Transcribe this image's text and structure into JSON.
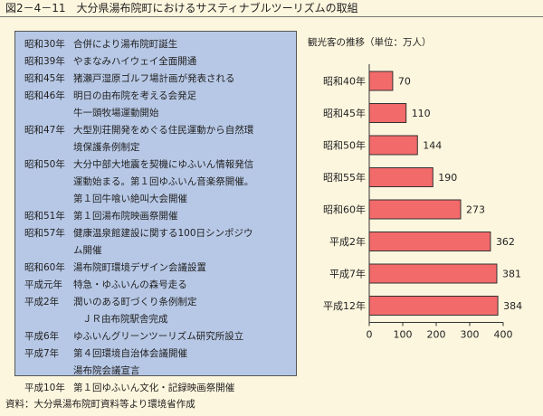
{
  "figure_title": "図2－4－11　大分県湯布院町におけるサスティナブルツーリズムの取組",
  "timeline": [
    {
      "era": "昭和30年",
      "lines": [
        "合併により湯布院町誕生"
      ]
    },
    {
      "era": "昭和39年",
      "lines": [
        "やまなみハイウェイ全面開通"
      ]
    },
    {
      "era": "昭和45年",
      "lines": [
        "猪瀬戸湿原ゴルフ場計画が発表される"
      ]
    },
    {
      "era": "昭和46年",
      "lines": [
        "明日の由布院を考える会発足",
        "牛一頭牧場運動開始"
      ]
    },
    {
      "era": "昭和47年",
      "lines": [
        "大型別荘開発をめぐる住民運動から自然環",
        "境保護条例制定"
      ]
    },
    {
      "era": "昭和50年",
      "lines": [
        "大分中部大地震を契機にゆふいん情報発信",
        "運動始まる。第１回ゆふいん音楽祭開催。",
        "第１回牛喰い絶叫大会開催"
      ]
    },
    {
      "era": "昭和51年",
      "lines": [
        "第１回湯布院映画祭開催"
      ]
    },
    {
      "era": "昭和57年",
      "lines": [
        "健康温泉館建設に関する100日シンポジウ",
        "ム開催"
      ]
    },
    {
      "era": "昭和60年",
      "lines": [
        "湯布院町環境デザイン会議設置"
      ]
    },
    {
      "era": "平成元年",
      "lines": [
        "特急・ゆふいんの森号走る"
      ]
    },
    {
      "era": "平成2年",
      "lines": [
        "潤いのある町づくり条例制定",
        "ＪＲ由布院駅舎完成"
      ]
    },
    {
      "era": "平成6年",
      "lines": [
        "ゆふいんグリーンツーリズム研究所設立"
      ]
    },
    {
      "era": "平成7年",
      "lines": [
        "第４回環境自治体会議開催",
        "湯布院会議宣言"
      ]
    },
    {
      "era": "平成10年",
      "lines": [
        "第１回ゆふいん文化・記録映画祭開催"
      ]
    }
  ],
  "source": "資料：大分県湯布院町資料等より環境省作成",
  "chart_data": {
    "type": "bar",
    "orientation": "horizontal",
    "title": "観光客の推移（単位：万人）",
    "categories": [
      "昭和40年",
      "昭和45年",
      "昭和50年",
      "昭和55年",
      "昭和60年",
      "平成2年",
      "平成7年",
      "平成12年"
    ],
    "values": [
      70,
      110,
      144,
      190,
      273,
      362,
      381,
      384
    ],
    "xlim": [
      0,
      400
    ],
    "xticks": [
      "0",
      "100",
      "200",
      "300",
      "400"
    ],
    "bar_color": "#f26a6a",
    "bar_border": "#333333",
    "grid": false
  }
}
